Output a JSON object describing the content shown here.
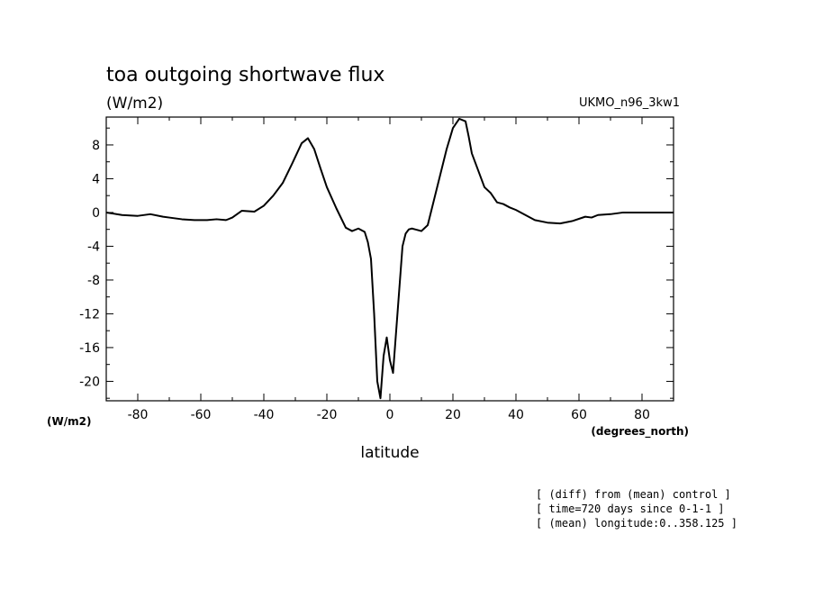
{
  "chart_data": {
    "type": "line",
    "title": "toa outgoing shortwave flux",
    "subtitle": "(W/m2)",
    "model_label": "UKMO_n96_3kw1",
    "xlabel": "latitude",
    "x_units": "(degrees_north)",
    "y_units": "(W/m2)",
    "xlim": [
      -90,
      90
    ],
    "ylim": [
      -22.3,
      11.3
    ],
    "x_ticks": [
      -80,
      -60,
      -40,
      -20,
      0,
      20,
      40,
      60,
      80
    ],
    "x_tick_labels": [
      "-80",
      "-60",
      "-40",
      "-20",
      "0",
      "20",
      "40",
      "60",
      "80"
    ],
    "y_ticks": [
      8,
      4,
      0,
      -4,
      -8,
      -12,
      -16,
      -20
    ],
    "y_tick_labels": [
      "8",
      "4",
      "0",
      "-4",
      "-8",
      "-12",
      "-16",
      "-20"
    ],
    "grid": false,
    "legend": "none",
    "series": [
      {
        "color": "#000000",
        "x": [
          -90,
          -85,
          -80,
          -76,
          -72,
          -70,
          -66,
          -62,
          -58,
          -55,
          -52,
          -50,
          -47,
          -43,
          -40,
          -37,
          -34,
          -31,
          -28,
          -26,
          -24,
          -22,
          -20,
          -17,
          -14,
          -12,
          -10,
          -8,
          -7,
          -6,
          -5,
          -4,
          -3,
          -2,
          -1,
          0,
          1,
          2,
          3,
          4,
          5,
          6,
          7,
          8,
          10,
          12,
          14,
          16,
          18,
          20,
          22,
          24,
          25,
          26,
          28,
          30,
          32,
          34,
          36,
          38,
          40,
          43,
          46,
          50,
          54,
          58,
          62,
          64,
          66,
          70,
          74,
          78,
          82,
          86,
          90
        ],
        "values": [
          0.0,
          -0.3,
          -0.4,
          -0.2,
          -0.5,
          -0.6,
          -0.8,
          -0.9,
          -0.9,
          -0.8,
          -0.9,
          -0.6,
          0.2,
          0.1,
          0.8,
          2.0,
          3.5,
          5.8,
          8.2,
          8.8,
          7.5,
          5.2,
          3.0,
          0.5,
          -1.8,
          -2.2,
          -1.9,
          -2.3,
          -3.5,
          -5.5,
          -12.0,
          -20.0,
          -22.0,
          -17.0,
          -14.8,
          -17.5,
          -19.0,
          -14.0,
          -9.0,
          -4.0,
          -2.5,
          -2.0,
          -1.9,
          -2.0,
          -2.2,
          -1.5,
          1.5,
          4.5,
          7.5,
          10.0,
          11.1,
          10.8,
          9.0,
          7.0,
          5.0,
          3.0,
          2.3,
          1.2,
          1.0,
          0.6,
          0.3,
          -0.3,
          -0.9,
          -1.2,
          -1.3,
          -1.0,
          -0.5,
          -0.6,
          -0.3,
          -0.2,
          0.0,
          0.0,
          0.0,
          0.0,
          0.0
        ]
      }
    ]
  },
  "footnotes": [
    "[ (diff) from (mean) control ]",
    "[ time=720 days since 0-1-1 ]",
    "[ (mean) longitude:0..358.125 ]"
  ]
}
